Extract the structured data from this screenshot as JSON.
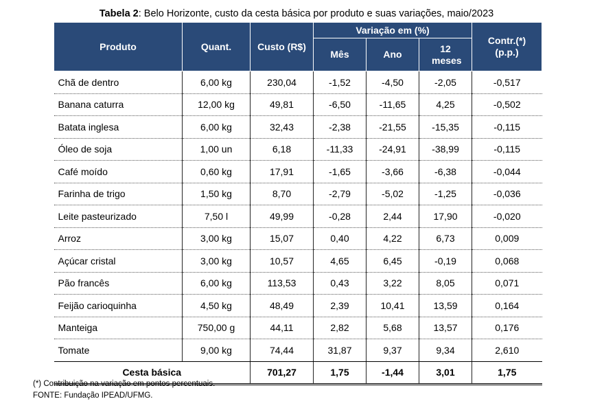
{
  "title": {
    "bold": "Tabela 2",
    "rest": ": Belo Horizonte, custo da cesta básica por produto e suas variações, maio/2023"
  },
  "headers": {
    "produto": "Produto",
    "quant": "Quant.",
    "custo": "Custo (R$)",
    "variacao": "Variação em (%)",
    "mes": "Mês",
    "ano": "Ano",
    "meses12": "12 meses",
    "contr": "Contr.(*) (p.p.)"
  },
  "rows": [
    {
      "produto": "Chã de dentro",
      "quant": "6,00 kg",
      "custo": "230,04",
      "mes": "-1,52",
      "ano": "-4,50",
      "m12": "-2,05",
      "contr": "-0,517"
    },
    {
      "produto": "Banana caturra",
      "quant": "12,00 kg",
      "custo": "49,81",
      "mes": "-6,50",
      "ano": "-11,65",
      "m12": "4,25",
      "contr": "-0,502"
    },
    {
      "produto": "Batata inglesa",
      "quant": "6,00 kg",
      "custo": "32,43",
      "mes": "-2,38",
      "ano": "-21,55",
      "m12": "-15,35",
      "contr": "-0,115"
    },
    {
      "produto": "Óleo de soja",
      "quant": "1,00 un",
      "custo": "6,18",
      "mes": "-11,33",
      "ano": "-24,91",
      "m12": "-38,99",
      "contr": "-0,115"
    },
    {
      "produto": "Café moído",
      "quant": "0,60 kg",
      "custo": "17,91",
      "mes": "-1,65",
      "ano": "-3,66",
      "m12": "-6,38",
      "contr": "-0,044"
    },
    {
      "produto": "Farinha de trigo",
      "quant": "1,50 kg",
      "custo": "8,70",
      "mes": "-2,79",
      "ano": "-5,02",
      "m12": "-1,25",
      "contr": "-0,036"
    },
    {
      "produto": "Leite pasteurizado",
      "quant": "7,50 l",
      "custo": "49,99",
      "mes": "-0,28",
      "ano": "2,44",
      "m12": "17,90",
      "contr": "-0,020"
    },
    {
      "produto": "Arroz",
      "quant": "3,00 kg",
      "custo": "15,07",
      "mes": "0,40",
      "ano": "4,22",
      "m12": "6,73",
      "contr": "0,009"
    },
    {
      "produto": "Açúcar cristal",
      "quant": "3,00 kg",
      "custo": "10,57",
      "mes": "4,65",
      "ano": "6,45",
      "m12": "-0,19",
      "contr": "0,068"
    },
    {
      "produto": "Pão francês",
      "quant": "6,00 kg",
      "custo": "113,53",
      "mes": "0,43",
      "ano": "3,22",
      "m12": "8,05",
      "contr": "0,071"
    },
    {
      "produto": "Feijão carioquinha",
      "quant": "4,50 kg",
      "custo": "48,49",
      "mes": "2,39",
      "ano": "10,41",
      "m12": "13,59",
      "contr": "0,164"
    },
    {
      "produto": "Manteiga",
      "quant": "750,00 g",
      "custo": "44,11",
      "mes": "2,82",
      "ano": "5,68",
      "m12": "13,57",
      "contr": "0,176"
    },
    {
      "produto": "Tomate",
      "quant": "9,00 kg",
      "custo": "74,44",
      "mes": "31,87",
      "ano": "9,37",
      "m12": "9,34",
      "contr": "2,610"
    }
  ],
  "total": {
    "label": "Cesta básica",
    "custo": "701,27",
    "mes": "1,75",
    "ano": "-1,44",
    "m12": "3,01",
    "contr": "1,75"
  },
  "notes": {
    "footnote": "(*) Contribuição na variação em pontos percentuais.",
    "source": "FONTE: Fundação IPEAD/UFMG."
  }
}
